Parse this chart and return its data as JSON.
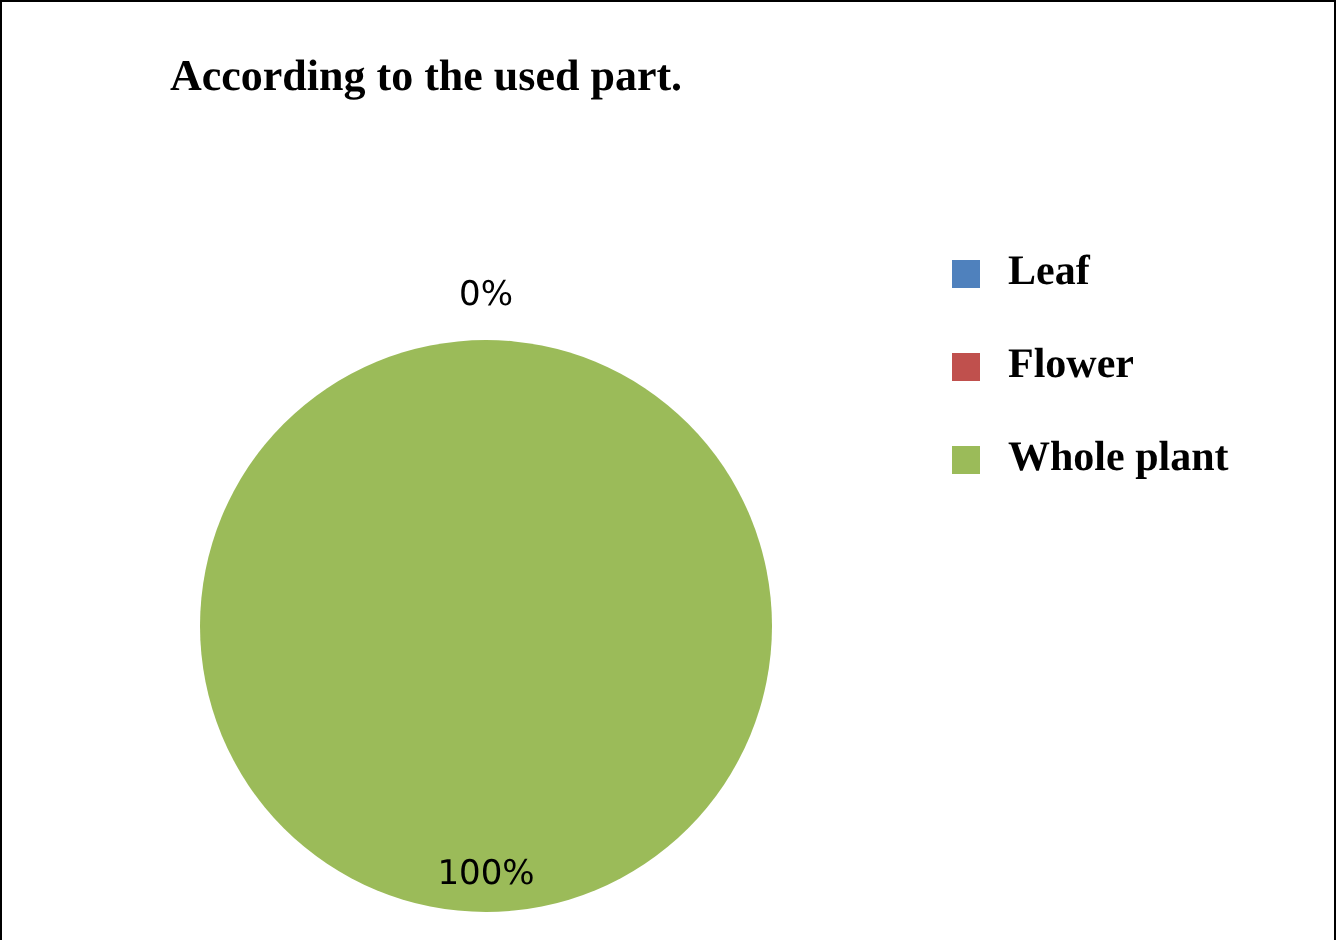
{
  "chart_data": {
    "type": "pie",
    "title": "According to the used part.",
    "categories": [
      "Leaf",
      "Flower",
      "Whole plant"
    ],
    "values": [
      0,
      0,
      100
    ],
    "colors": [
      "#4f81bd",
      "#c0504d",
      "#9bbb59"
    ],
    "value_labels": [
      "0%",
      null,
      "100%"
    ],
    "legend": "right"
  }
}
